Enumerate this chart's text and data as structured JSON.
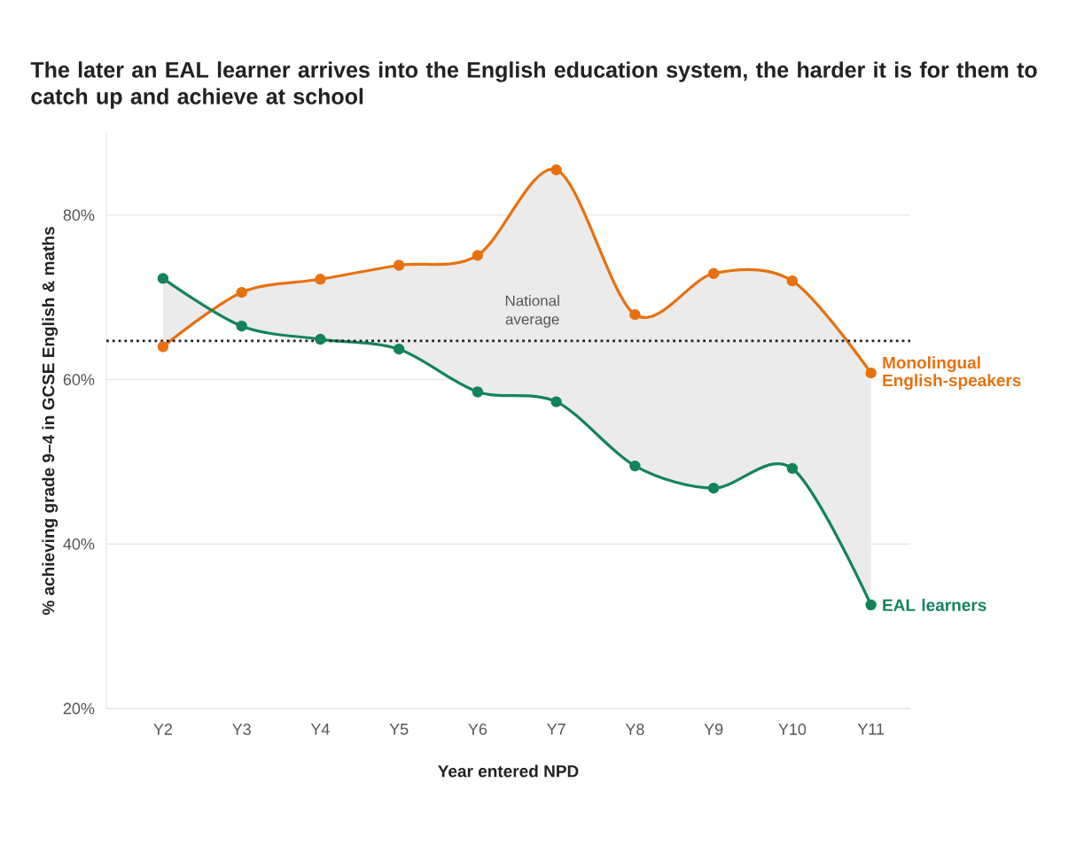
{
  "chart_data": {
    "type": "line",
    "title": "The later an EAL learner arrives into the English education system, the harder it is for them to catch up and achieve at school",
    "xlabel": "Year entered NPD",
    "ylabel": "% achieving grade 9–4 in GCSE English & maths",
    "categories": [
      "Y2",
      "Y3",
      "Y4",
      "Y5",
      "Y6",
      "Y7",
      "Y8",
      "Y9",
      "Y10",
      "Y11"
    ],
    "series": [
      {
        "name": "Monolingual English-speakers",
        "color": "#e8700e",
        "values": [
          64.0,
          70.6,
          72.2,
          73.9,
          75.1,
          85.5,
          67.9,
          72.9,
          72.0,
          60.8
        ],
        "lower": [
          72.3,
          66.5,
          64.9,
          63.7,
          58.5,
          57.3,
          49.5,
          46.8,
          49.2,
          32.6
        ],
        "upper": [
          64.0,
          70.6,
          72.2,
          73.9,
          75.1,
          85.5,
          67.9,
          72.9,
          72.0,
          60.8
        ]
      },
      {
        "name": "EAL learners",
        "color": "#13845a",
        "values": [
          72.3,
          66.5,
          64.9,
          63.7,
          58.5,
          57.3,
          49.5,
          46.8,
          49.2,
          32.6
        ]
      }
    ],
    "ylim": [
      20,
      90
    ],
    "yticks": [
      {
        "value": 20,
        "label": "20%"
      },
      {
        "value": 40,
        "label": "40%"
      },
      {
        "value": 60,
        "label": "60%"
      },
      {
        "value": 80,
        "label": "80%"
      }
    ],
    "ref_lines": [
      {
        "axis": "y",
        "value": 64.7,
        "label": "National average",
        "line_style": "dotted",
        "color": "#222222"
      }
    ],
    "grid": "y",
    "legend": false,
    "marker": "circle",
    "line_style": "solid"
  }
}
